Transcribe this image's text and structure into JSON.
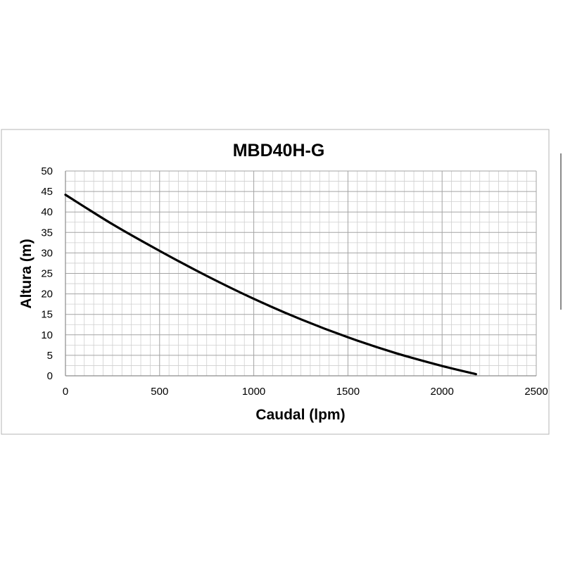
{
  "chart_data": {
    "type": "line",
    "title": "MBD40H-G",
    "xlabel": "Caudal (lpm)",
    "ylabel": "Altura (m)",
    "xlim": [
      0,
      2500
    ],
    "ylim": [
      0,
      50
    ],
    "x_ticks": [
      "0",
      "500",
      "1000",
      "1500",
      "2000",
      "2500"
    ],
    "y_ticks": [
      "0",
      "5",
      "10",
      "15",
      "20",
      "25",
      "30",
      "35",
      "40",
      "45",
      "50"
    ],
    "grid": true,
    "legend": "none",
    "line_color": "#000000",
    "series": [
      {
        "x": [
          0,
          250,
          500,
          750,
          1000,
          1250,
          1500,
          1750,
          2000,
          2180
        ],
        "values": [
          44.2,
          37.0,
          30.5,
          24.4,
          18.8,
          13.8,
          9.4,
          5.6,
          2.4,
          0.4
        ]
      }
    ]
  }
}
